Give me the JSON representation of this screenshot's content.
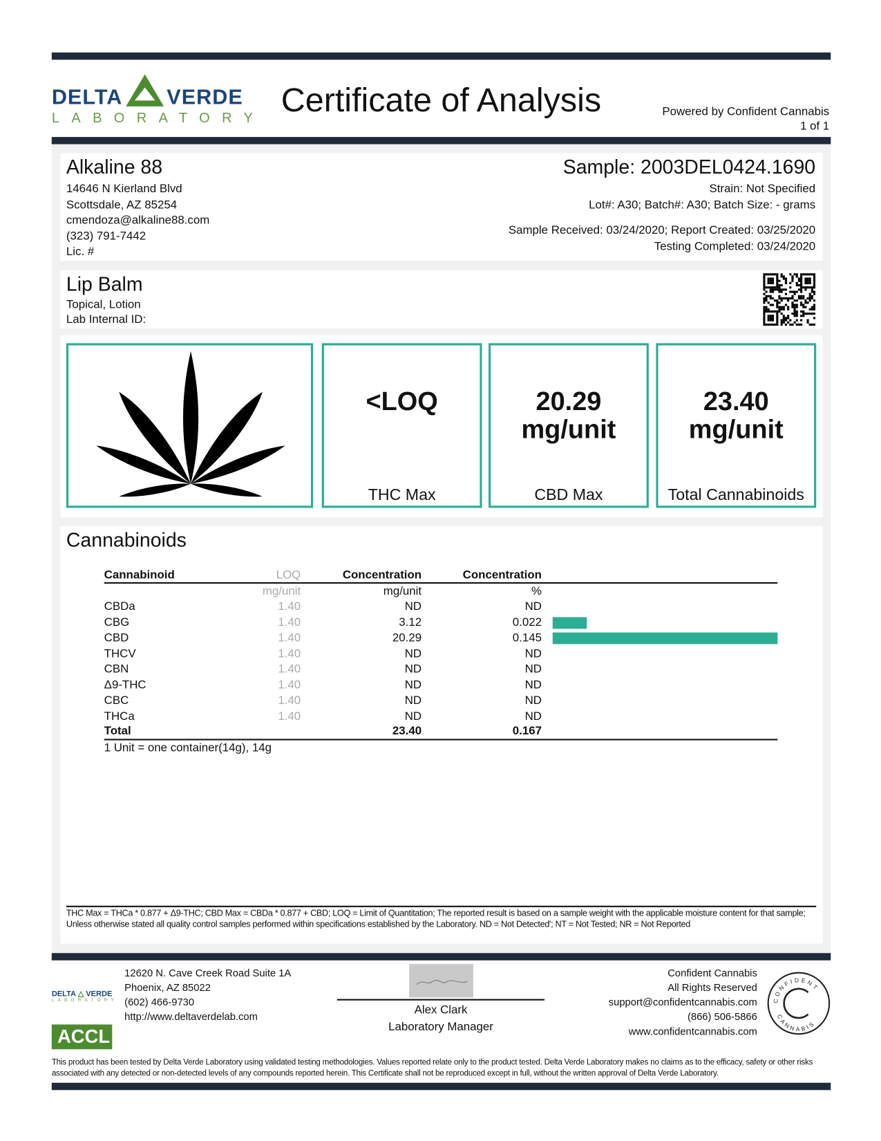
{
  "header": {
    "logo_text": "DELTA VERDE LABORATORY",
    "title": "Certificate of Analysis",
    "powered_by": "Powered by Confident Cannabis",
    "page": "1 of 1"
  },
  "client": {
    "name": "Alkaline 88",
    "address1": "14646 N Kierland Blvd",
    "address2": "Scottsdale, AZ 85254",
    "email": "cmendoza@alkaline88.com",
    "phone": "(323) 791-7442",
    "license": "Lic. #"
  },
  "sample": {
    "id": "Sample: 2003DEL0424.1690",
    "strain": "Strain: Not Specified",
    "lot": "Lot#: A30; Batch#: A30; Batch Size:  - grams",
    "dates": "Sample Received: 03/24/2020; Report Created: 03/25/2020",
    "testing": "Testing Completed: 03/24/2020"
  },
  "product": {
    "name": "Lip Balm",
    "type": "Topical, Lotion",
    "internal_id": "Lab Internal ID:"
  },
  "summary": [
    {
      "value": "<LOQ",
      "unit": "",
      "label": "THC Max"
    },
    {
      "value": "20.29",
      "unit": "mg/unit",
      "label": "CBD Max"
    },
    {
      "value": "23.40",
      "unit": "mg/unit",
      "label": "Total Cannabinoids"
    }
  ],
  "colors": {
    "accent": "#2bae94",
    "bar": "#1f2b3a",
    "logo_blue": "#1b4577",
    "logo_green": "#4c8c2f"
  },
  "cannabinoids": {
    "title": "Cannabinoids",
    "headers": [
      "Cannabinoid",
      "LOQ",
      "Concentration",
      "Concentration"
    ],
    "units": [
      "",
      "mg/unit",
      "mg/unit",
      "%"
    ],
    "rows": [
      {
        "name": "CBDa",
        "loq": "1.40",
        "mg": "ND",
        "pct": "ND",
        "pct_value": 0
      },
      {
        "name": "CBG",
        "loq": "1.40",
        "mg": "3.12",
        "pct": "0.022",
        "pct_value": 0.022
      },
      {
        "name": "CBD",
        "loq": "1.40",
        "mg": "20.29",
        "pct": "0.145",
        "pct_value": 0.145
      },
      {
        "name": "THCV",
        "loq": "1.40",
        "mg": "ND",
        "pct": "ND",
        "pct_value": 0
      },
      {
        "name": "CBN",
        "loq": "1.40",
        "mg": "ND",
        "pct": "ND",
        "pct_value": 0
      },
      {
        "name": "Δ9-THC",
        "loq": "1.40",
        "mg": "ND",
        "pct": "ND",
        "pct_value": 0
      },
      {
        "name": "CBC",
        "loq": "1.40",
        "mg": "ND",
        "pct": "ND",
        "pct_value": 0
      },
      {
        "name": "THCa",
        "loq": "1.40",
        "mg": "ND",
        "pct": "ND",
        "pct_value": 0
      }
    ],
    "total": {
      "name": "Total",
      "mg": "23.40",
      "pct": "0.167"
    },
    "unit_note": "1 Unit = one container(14g), 14g"
  },
  "footnote": "THC Max = THCa * 0.877 + Δ9-THC; CBD Max = CBDa * 0.877 + CBD; LOQ = Limit of Quantitation; The reported result is based on a sample weight with the applicable moisture content for that sample; Unless otherwise stated all quality control samples performed within specifications established by the Laboratory.  ND = Not Detected'; NT = Not Tested; NR = Not Reported",
  "footer": {
    "lab_address1": "12620 N. Cave Creek Road Suite 1A",
    "lab_address2": "Phoenix, AZ 85022",
    "lab_phone": "(602) 466-9730",
    "lab_web": "http://www.deltaverdelab.com",
    "accl": "ACCL",
    "signer": "Alex Clark",
    "signer_title": "Laboratory Manager",
    "cc_name": "Confident Cannabis",
    "cc_rights": "All Rights Reserved",
    "cc_email": "support@confidentcannabis.com",
    "cc_phone": "(866) 506-5866",
    "cc_web": "www.confidentcannabis.com",
    "cc_seal": "CONFIDENT CANNABIS"
  },
  "disclaimer": "This product has been tested by Delta Verde Laboratory using validated testing methodologies. Values reported relate only to the product tested. Delta Verde Laboratory makes no claims as to the efficacy, safety or other risks associated with any detected or non-detected levels of any compounds reported herein. This Certificate shall not be reproduced except in full, without the written approval of Delta Verde Laboratory."
}
